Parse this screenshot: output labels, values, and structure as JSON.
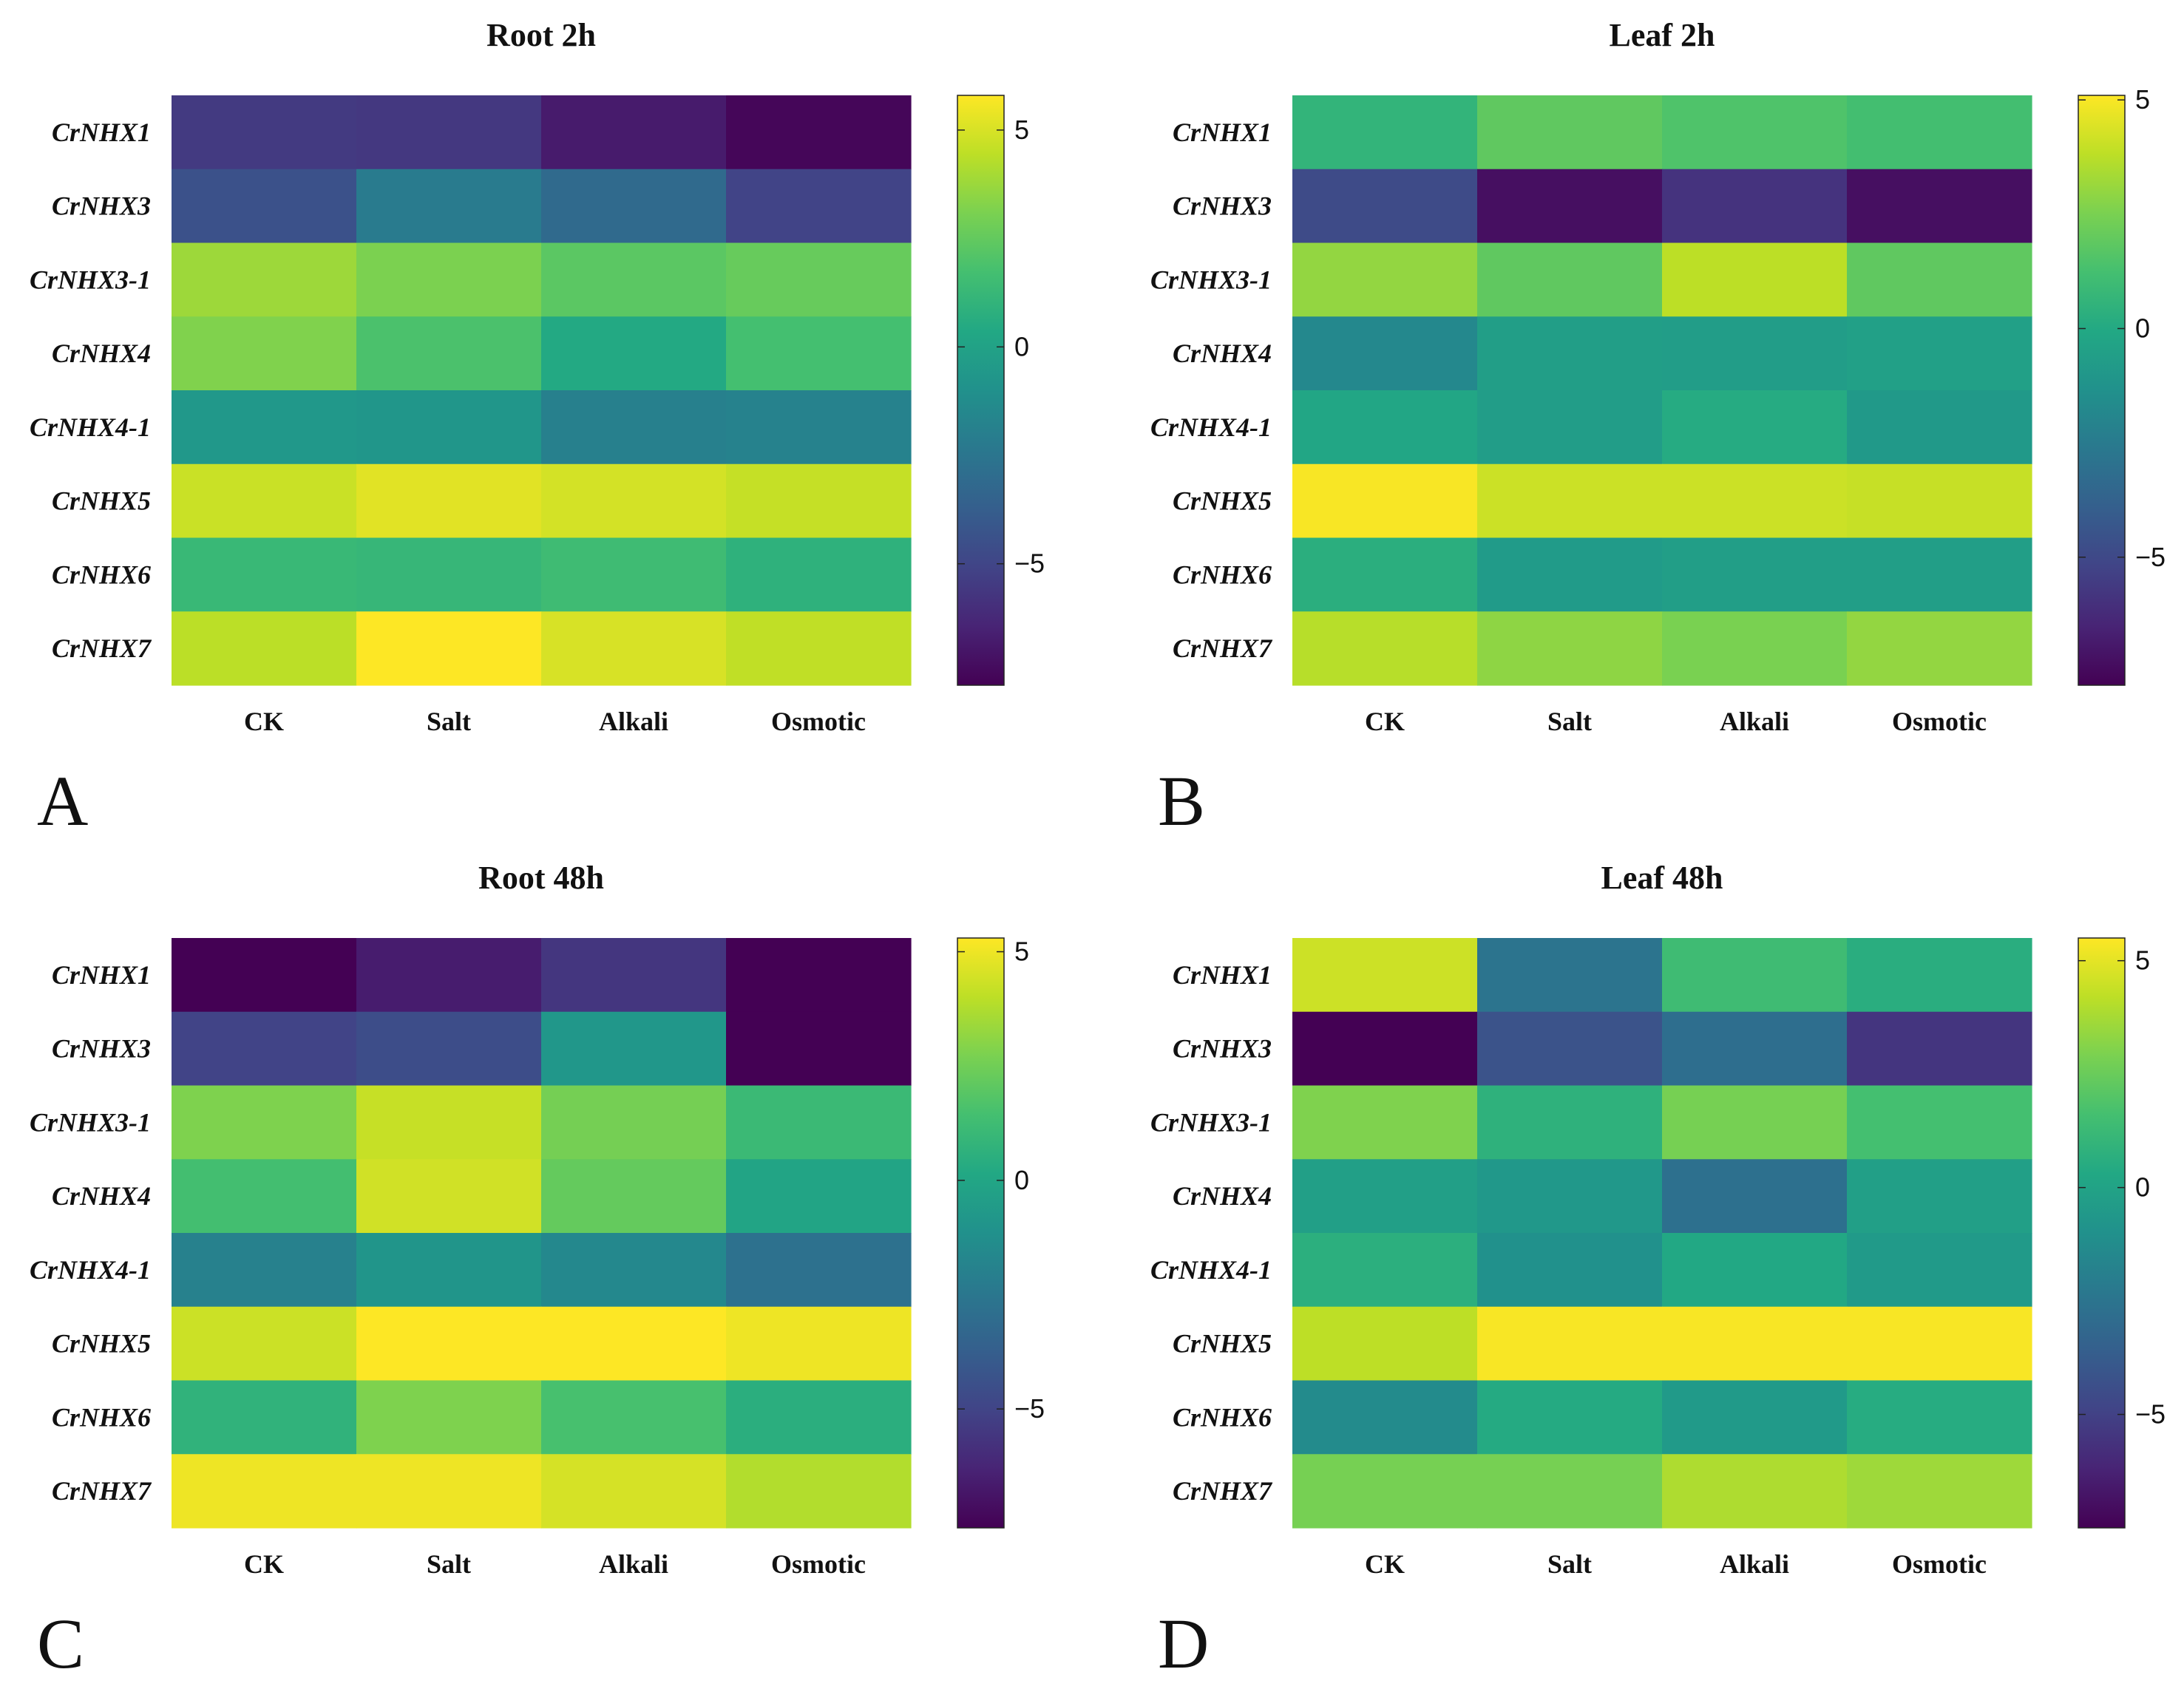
{
  "chart_data": [
    {
      "type": "heatmap",
      "panel_label": "A",
      "title": "Root 2h",
      "rows": [
        "CrNHX1",
        "CrNHX3",
        "CrNHX3-1",
        "CrNHX4",
        "CrNHX4-1",
        "CrNHX5",
        "CrNHX6",
        "CrNHX7"
      ],
      "columns": [
        "CK",
        "Salt",
        "Alkali",
        "Osmotic"
      ],
      "values": [
        [
          -5.5,
          -5.6,
          -6.8,
          -7.6
        ],
        [
          -4.4,
          -2.2,
          -3.1,
          -5.1
        ],
        [
          3.8,
          3.1,
          2.3,
          2.6
        ],
        [
          3.2,
          1.9,
          0.4,
          1.7
        ],
        [
          -0.6,
          -0.7,
          -1.9,
          -1.8
        ],
        [
          4.7,
          5.2,
          4.9,
          4.6
        ],
        [
          1.3,
          1.2,
          1.5,
          0.9
        ],
        [
          4.4,
          5.8,
          5.0,
          4.5
        ]
      ],
      "colorbar": {
        "min": -7.8,
        "max": 5.8,
        "ticks": [
          5,
          0,
          -5
        ],
        "tick_labels": [
          "5",
          "0",
          "−5"
        ]
      }
    },
    {
      "type": "heatmap",
      "panel_label": "B",
      "title": "Leaf 2h",
      "rows": [
        "CrNHX1",
        "CrNHX3",
        "CrNHX3-1",
        "CrNHX4",
        "CrNHX4-1",
        "CrNHX5",
        "CrNHX6",
        "CrNHX7"
      ],
      "columns": [
        "CK",
        "Salt",
        "Alkali",
        "Osmotic"
      ],
      "values": [
        [
          0.6,
          1.9,
          1.5,
          1.2
        ],
        [
          -4.9,
          -7.3,
          -5.9,
          -7.3
        ],
        [
          3.0,
          1.9,
          3.8,
          1.9
        ],
        [
          -1.8,
          -0.6,
          -0.7,
          -0.5
        ],
        [
          -0.2,
          -0.7,
          0.1,
          -0.9
        ],
        [
          5.0,
          4.1,
          4.1,
          4.0
        ],
        [
          0.3,
          -0.8,
          -0.6,
          -0.6
        ],
        [
          3.7,
          2.9,
          2.5,
          3.0
        ]
      ],
      "colorbar": {
        "min": -7.8,
        "max": 5.1,
        "ticks": [
          5,
          0,
          -5
        ],
        "tick_labels": [
          "5",
          "0",
          "−5"
        ]
      }
    },
    {
      "type": "heatmap",
      "panel_label": "C",
      "title": "Root 48h",
      "rows": [
        "CrNHX1",
        "CrNHX3",
        "CrNHX3-1",
        "CrNHX4",
        "CrNHX4-1",
        "CrNHX5",
        "CrNHX6",
        "CrNHX7"
      ],
      "columns": [
        "CK",
        "Salt",
        "Alkali",
        "Osmotic"
      ],
      "values": [
        [
          -7.6,
          -6.6,
          -5.6,
          -7.6
        ],
        [
          -5.0,
          -4.6,
          -0.8,
          -7.6
        ],
        [
          2.8,
          4.2,
          2.6,
          1.1
        ],
        [
          1.4,
          4.4,
          2.2,
          -0.1
        ],
        [
          -2.0,
          -0.9,
          -1.6,
          -2.8
        ],
        [
          4.3,
          5.3,
          5.3,
          5.0
        ],
        [
          0.7,
          2.8,
          1.5,
          0.5
        ],
        [
          5.0,
          5.0,
          4.5,
          3.8
        ]
      ],
      "colorbar": {
        "min": -7.6,
        "max": 5.3,
        "ticks": [
          5,
          0,
          -5
        ],
        "tick_labels": [
          "5",
          "0",
          "−5"
        ]
      }
    },
    {
      "type": "heatmap",
      "panel_label": "D",
      "title": "Leaf 48h",
      "rows": [
        "CrNHX1",
        "CrNHX3",
        "CrNHX3-1",
        "CrNHX4",
        "CrNHX4-1",
        "CrNHX5",
        "CrNHX6",
        "CrNHX7"
      ],
      "columns": [
        "CK",
        "Salt",
        "Alkali",
        "Osmotic"
      ],
      "values": [
        [
          4.5,
          -2.5,
          1.4,
          0.6
        ],
        [
          -7.5,
          -4.2,
          -2.8,
          -5.5
        ],
        [
          3.0,
          0.8,
          2.8,
          1.6
        ],
        [
          -0.2,
          -0.6,
          -2.7,
          -0.2
        ],
        [
          0.7,
          -1.0,
          0.3,
          -0.5
        ],
        [
          4.2,
          5.4,
          5.4,
          5.4
        ],
        [
          -1.3,
          0.4,
          -0.5,
          0.5
        ],
        [
          2.8,
          2.8,
          3.9,
          3.6
        ]
      ],
      "colorbar": {
        "min": -7.5,
        "max": 5.5,
        "ticks": [
          5,
          0,
          -5
        ],
        "tick_labels": [
          "5",
          "0",
          "−5"
        ]
      }
    }
  ]
}
